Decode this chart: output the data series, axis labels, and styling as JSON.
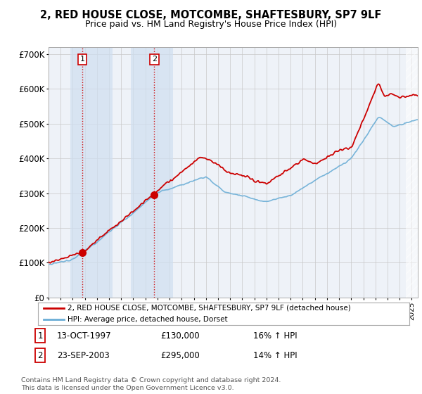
{
  "title": "2, RED HOUSE CLOSE, MOTCOMBE, SHAFTESBURY, SP7 9LF",
  "subtitle": "Price paid vs. HM Land Registry's House Price Index (HPI)",
  "legend_line1": "2, RED HOUSE CLOSE, MOTCOMBE, SHAFTESBURY, SP7 9LF (detached house)",
  "legend_line2": "HPI: Average price, detached house, Dorset",
  "transaction1_date": "13-OCT-1997",
  "transaction1_price": 130000,
  "transaction1_hpi": "16% ↑ HPI",
  "transaction1_label": "1",
  "transaction2_date": "23-SEP-2003",
  "transaction2_price": 295000,
  "transaction2_hpi": "14% ↑ HPI",
  "transaction2_label": "2",
  "footer": "Contains HM Land Registry data © Crown copyright and database right 2024.\nThis data is licensed under the Open Government Licence v3.0.",
  "ylim": [
    0,
    720000
  ],
  "yticks": [
    0,
    100000,
    200000,
    300000,
    400000,
    500000,
    600000,
    700000
  ],
  "ytick_labels": [
    "£0",
    "£100K",
    "£200K",
    "£300K",
    "£400K",
    "£500K",
    "£600K",
    "£700K"
  ],
  "background_color": "#ffffff",
  "plot_bg_color": "#eef2f8",
  "grid_color": "#c8c8c8",
  "hpi_line_color": "#6baed6",
  "price_line_color": "#cc0000",
  "transaction1_x": 1997.79,
  "transaction2_x": 2003.73,
  "shade1_start": 1996.8,
  "shade1_end": 2000.3,
  "shade2_start": 2001.8,
  "shade2_end": 2005.3,
  "hatch_start": 2024.5,
  "xmin": 1995.0,
  "xmax": 2025.5,
  "title_fontsize": 10.5,
  "subtitle_fontsize": 9
}
